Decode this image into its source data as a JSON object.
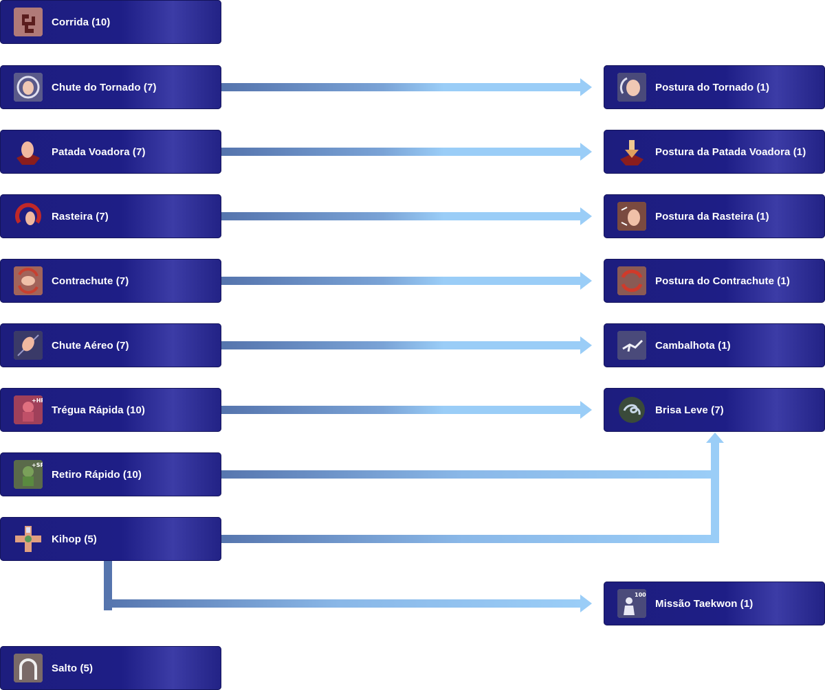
{
  "skills": {
    "corrida": {
      "label": "Corrida (10)",
      "icon": "running-foot-icon",
      "color": "#a66e6e"
    },
    "chute_tornado": {
      "label": "Chute do Tornado (7)",
      "icon": "tornado-kick-icon",
      "color": "#6a6a9a"
    },
    "patada_voadora": {
      "label": "Patada Voadora (7)",
      "icon": "flying-kick-icon",
      "color": "#8a1d1d"
    },
    "rasteira": {
      "label": "Rasteira (7)",
      "icon": "sweep-kick-icon",
      "color": "#b02828"
    },
    "contrachute": {
      "label": "Contrachute (7)",
      "icon": "counter-kick-icon",
      "color": "#a2645a"
    },
    "chute_aereo": {
      "label": "Chute Aéreo (7)",
      "icon": "air-kick-icon",
      "color": "#4a4a78"
    },
    "tregua_rapida": {
      "label": "Trégua Rápida (10)",
      "icon": "hp-recovery-icon",
      "color": "#a0405a"
    },
    "retiro_rapido": {
      "label": "Retiro Rápido (10)",
      "icon": "sp-recovery-icon",
      "color": "#4a6a3a"
    },
    "kihop": {
      "label": "Kihop (5)",
      "icon": "kihop-cross-icon",
      "color": "#c05a40"
    },
    "salto": {
      "label": "Salto (5)",
      "icon": "leap-arch-icon",
      "color": "#8a7a78"
    },
    "postura_tornado": {
      "label": "Postura do Tornado (1)",
      "icon": "tornado-stance-icon",
      "color": "#6a6a9a"
    },
    "postura_patada": {
      "label": "Postura da Patada Voadora (1)",
      "icon": "flying-kick-stance-icon",
      "color": "#8a1d1d"
    },
    "postura_rasteira": {
      "label": "Postura da Rasteira (1)",
      "icon": "sweep-stance-icon",
      "color": "#7a4a40"
    },
    "postura_contrachute": {
      "label": "Postura do Contrachute (1)",
      "icon": "counter-stance-icon",
      "color": "#8a4a44"
    },
    "cambalhota": {
      "label": "Cambalhota (1)",
      "icon": "tumble-icon",
      "color": "#4a4a7a"
    },
    "brisa_leve": {
      "label": "Brisa Leve (7)",
      "icon": "mild-wind-icon",
      "color": "#3a4a3a"
    },
    "missao_taekwon": {
      "label": "Missão Taekwon (1)",
      "icon": "taekwon-mission-icon",
      "color": "#5a5a8a"
    }
  },
  "links": [
    {
      "from": "chute_tornado",
      "to": "postura_tornado"
    },
    {
      "from": "patada_voadora",
      "to": "postura_patada"
    },
    {
      "from": "rasteira",
      "to": "postura_rasteira"
    },
    {
      "from": "contrachute",
      "to": "postura_contrachute"
    },
    {
      "from": "chute_aereo",
      "to": "cambalhota"
    },
    {
      "from": "tregua_rapida",
      "to": "brisa_leve"
    },
    {
      "from": "retiro_rapido",
      "to": "brisa_leve"
    },
    {
      "from": "kihop",
      "to": "brisa_leve"
    },
    {
      "from": "kihop",
      "to": "missao_taekwon"
    }
  ],
  "colors": {
    "node": "#1e1e86",
    "arrow_dark": "#5a7db8",
    "arrow_light": "#9acdf7"
  }
}
